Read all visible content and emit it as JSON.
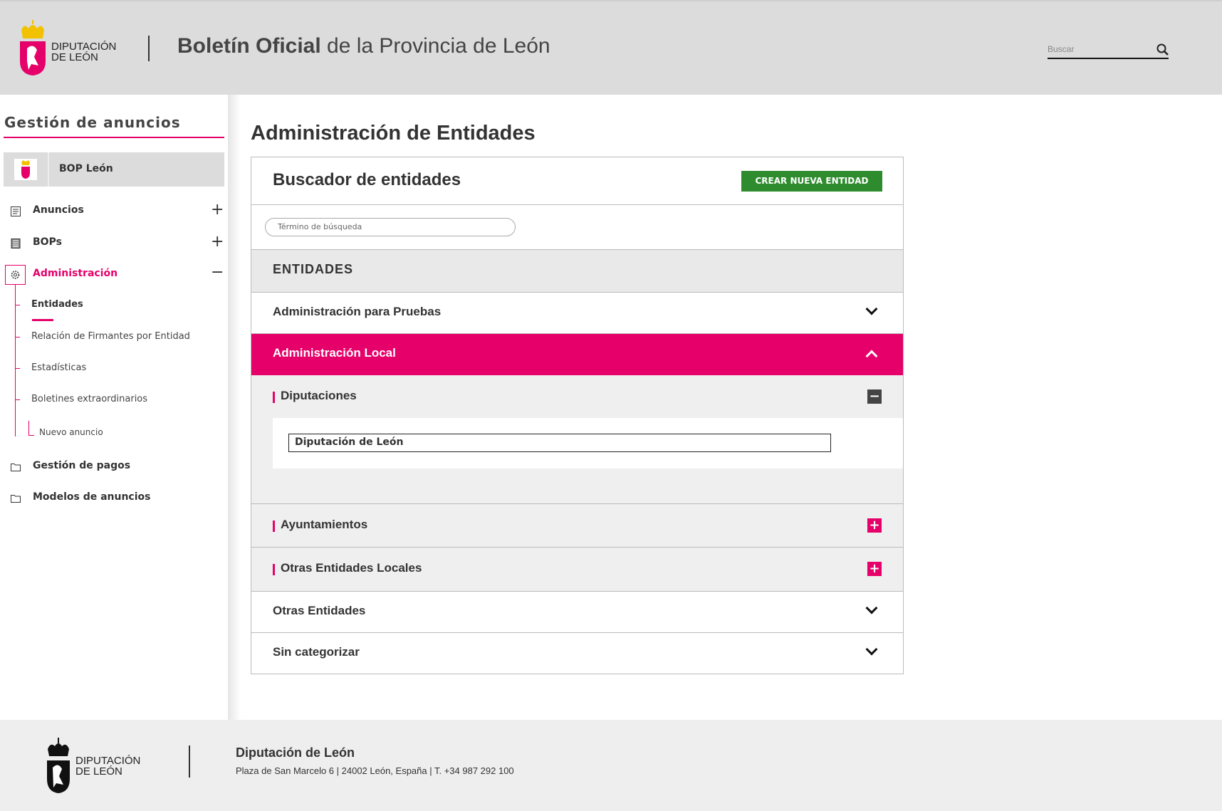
{
  "header": {
    "logo_text_1": "DIPUTACIÓN",
    "logo_text_2": "DE LEÓN",
    "title_bold": "Boletín Oficial",
    "title_rest": " de la Provincia de León",
    "search_placeholder": "Buscar"
  },
  "sidebar": {
    "title": "Gestión de anuncios",
    "site": "BOP León",
    "items": [
      {
        "label": "Anuncios",
        "icon": "document-icon",
        "expander": "+"
      },
      {
        "label": "BOPs",
        "icon": "list-icon",
        "expander": "+"
      },
      {
        "label": "Administración",
        "icon": "gear-icon",
        "expander": "−"
      },
      {
        "label": "Gestión de pagos",
        "icon": "folder-icon"
      },
      {
        "label": "Modelos de anuncios",
        "icon": "folder-icon"
      }
    ],
    "subitems": [
      "Entidades",
      "Relación de Firmantes por Entidad",
      "Estadísticas",
      "Boletines extraordinarios"
    ],
    "subsub": "Nuevo anuncio"
  },
  "main": {
    "title": "Administración de Entidades",
    "panel_title": "Buscador de entidades",
    "create_button": "CREAR NUEVA ENTIDAD",
    "search_placeholder": "Término de búsqueda",
    "section": "ENTIDADES",
    "categories": [
      "Administración para Pruebas",
      "Administración Local",
      "Otras Entidades",
      "Sin categorizar"
    ],
    "subcategories": [
      "Diputaciones",
      "Ayuntamientos",
      "Otras Entidades Locales"
    ],
    "entity": "Diputación de León"
  },
  "footer": {
    "org": "Diputación de León",
    "address": "Plaza de San Marcelo 6 | 24002 León, España | T. +34 987 292 100",
    "logo_text_1": "DIPUTACIÓN",
    "logo_text_2": "DE LEÓN"
  },
  "colors": {
    "accent": "#e5006a",
    "button": "#2e8b2e",
    "header_bg": "#dcdcdc"
  }
}
